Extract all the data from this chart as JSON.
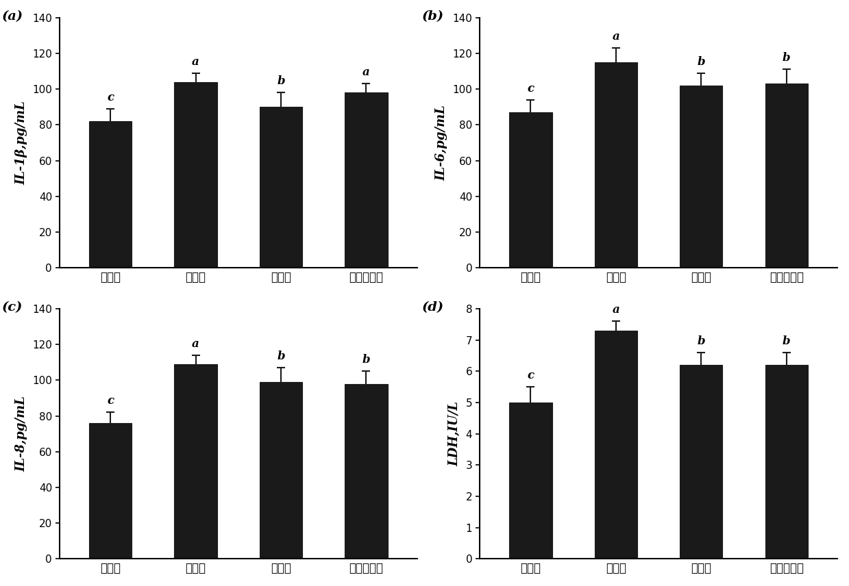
{
  "subplots": [
    {
      "label": "(a)",
      "ylabel": "IL-1β,pg/mL",
      "categories": [
        "空白组",
        "模型组",
        "对照组",
        "原位凝胶组"
      ],
      "values": [
        82,
        104,
        90,
        98
      ],
      "errors": [
        7,
        5,
        8,
        5
      ],
      "sig_labels": [
        "c",
        "a",
        "b",
        "a"
      ],
      "ylim": [
        0,
        140
      ],
      "yticks": [
        0,
        20,
        40,
        60,
        80,
        100,
        120,
        140
      ]
    },
    {
      "label": "(b)",
      "ylabel": "IL-6,pg/mL",
      "categories": [
        "空白组",
        "模型组",
        "对照组",
        "原位凝胶组"
      ],
      "values": [
        87,
        115,
        102,
        103
      ],
      "errors": [
        7,
        8,
        7,
        8
      ],
      "sig_labels": [
        "c",
        "a",
        "b",
        "b"
      ],
      "ylim": [
        0,
        140
      ],
      "yticks": [
        0,
        20,
        40,
        60,
        80,
        100,
        120,
        140
      ]
    },
    {
      "label": "(c)",
      "ylabel": "IL-8,pg/mL",
      "categories": [
        "空白组",
        "模型组",
        "对照组",
        "原位凝胶组"
      ],
      "values": [
        76,
        109,
        99,
        98
      ],
      "errors": [
        6,
        5,
        8,
        7
      ],
      "sig_labels": [
        "c",
        "a",
        "b",
        "b"
      ],
      "ylim": [
        0,
        140
      ],
      "yticks": [
        0,
        20,
        40,
        60,
        80,
        100,
        120,
        140
      ]
    },
    {
      "label": "(d)",
      "ylabel": "LDH,IU/L",
      "categories": [
        "空白组",
        "模型组",
        "对照组",
        "原位凝胶组"
      ],
      "values": [
        5.0,
        7.3,
        6.2,
        6.2
      ],
      "errors": [
        0.5,
        0.3,
        0.4,
        0.4
      ],
      "sig_labels": [
        "c",
        "a",
        "b",
        "b"
      ],
      "ylim": [
        0,
        8
      ],
      "yticks": [
        0,
        1,
        2,
        3,
        4,
        5,
        6,
        7,
        8
      ]
    }
  ],
  "bar_color": "#1a1a1a",
  "bar_edgecolor": "#1a1a1a",
  "error_color": "#1a1a1a",
  "background_color": "#ffffff"
}
